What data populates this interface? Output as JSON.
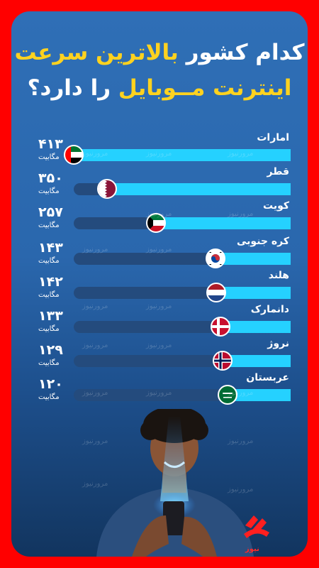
{
  "title": {
    "line1_white": "کدام کشور",
    "line1_yellow": "بالاترین سرعت",
    "line2_yellow": "اینترنت مــوبایل",
    "line2_white": "را دارد؟"
  },
  "watermark": "مرورنیوز",
  "logo_text": "نیوز",
  "colors": {
    "accent_bar": "#25d1ff",
    "track": "#244b7d",
    "title_yellow": "#ffd21f",
    "frame": "#ff0000"
  },
  "chart_data": {
    "type": "bar",
    "orientation": "horizontal",
    "categories": [
      "امارات",
      "قطر",
      "کویت",
      "کره جنوبی",
      "هلند",
      "دانمارک",
      "نروژ",
      "عربستان"
    ],
    "values": [
      413,
      350,
      257,
      143,
      142,
      133,
      129,
      120
    ],
    "value_labels": [
      "۴۱۳",
      "۳۵۰",
      "۲۵۷",
      "۱۴۳",
      "۱۴۲",
      "۱۳۳",
      "۱۲۹",
      "۱۲۰"
    ],
    "unit": "مگابیت",
    "flags": [
      "uae-flag-icon",
      "qatar-flag-icon",
      "kuwait-flag-icon",
      "south-korea-flag-icon",
      "netherlands-flag-icon",
      "denmark-flag-icon",
      "norway-flag-icon",
      "saudi-arabia-flag-icon"
    ]
  }
}
